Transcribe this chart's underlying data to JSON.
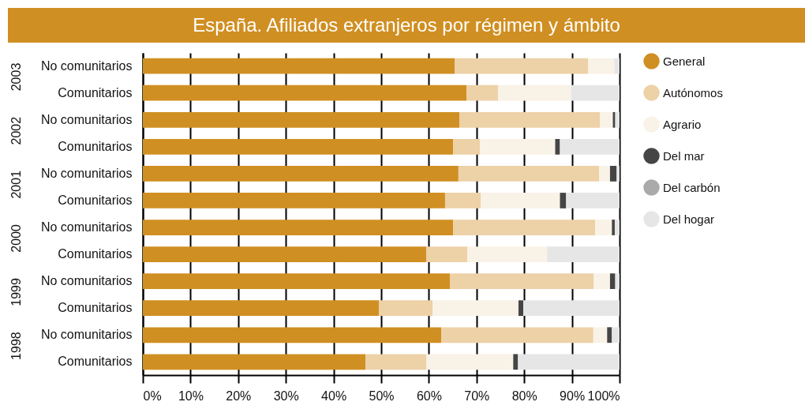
{
  "chart_data": {
    "type": "bar",
    "orientation": "horizontal",
    "stacked": true,
    "title": "España. Afiliados extranjeros por régimen y ámbito",
    "categories": [
      "No comunitarios",
      "Comunitarios",
      "No comunitarios",
      "Comunitarios",
      "No comunitarios",
      "Comunitarios",
      "No comunitarios",
      "Comunitarios",
      "No comunitarios",
      "Comunitarios",
      "No comunitarios",
      "Comunitarios"
    ],
    "annotations": [
      "2003",
      "2002",
      "2001",
      "2000",
      "1999",
      "1998"
    ],
    "series": [
      {
        "name": "General",
        "color": "#d08f22",
        "values": [
          65.4,
          67.9,
          66.4,
          65.1,
          66.2,
          63.4,
          65.1,
          59.5,
          64.4,
          49.5,
          62.6,
          46.7
        ]
      },
      {
        "name": "Autónomos",
        "color": "#edd1a7",
        "values": [
          28.0,
          6.6,
          29.5,
          5.6,
          29.5,
          7.5,
          29.8,
          8.6,
          30.2,
          11.3,
          31.9,
          12.8
        ]
      },
      {
        "name": "Agrario",
        "color": "#f9f2e6",
        "values": [
          5.5,
          15.3,
          2.7,
          15.8,
          2.3,
          16.6,
          3.5,
          16.7,
          3.4,
          18.0,
          2.9,
          18.2
        ]
      },
      {
        "name": "Del mar",
        "color": "#454545",
        "values": [
          0,
          0,
          0.5,
          1.0,
          1.4,
          1.3,
          0.6,
          0,
          1.1,
          1.0,
          1.0,
          1.0
        ]
      },
      {
        "name": "Del carbón",
        "color": "#aaaaaa",
        "values": [
          0,
          0,
          0,
          0,
          0,
          0,
          0,
          0,
          0,
          0,
          0,
          0
        ]
      },
      {
        "name": "Del hogar",
        "color": "#e6e6e6",
        "values": [
          1.1,
          10.2,
          0.9,
          12.5,
          0.6,
          11.2,
          1.0,
          15.2,
          0.9,
          20.2,
          1.6,
          21.3
        ]
      }
    ],
    "xlim": [
      0,
      100
    ],
    "xticks": [
      {
        "value": 0,
        "label": "0%"
      },
      {
        "value": 10,
        "label": "10%"
      },
      {
        "value": 20,
        "label": "20%"
      },
      {
        "value": 30,
        "label": "30%"
      },
      {
        "value": 40,
        "label": "40%"
      },
      {
        "value": 50,
        "label": "50%"
      },
      {
        "value": 60,
        "label": "60%"
      },
      {
        "value": 70,
        "label": "70%"
      },
      {
        "value": 80,
        "label": "80%"
      },
      {
        "value": 90,
        "label": "90%"
      },
      {
        "value": 100,
        "label": "100%"
      }
    ],
    "grid": "x",
    "legend": "right"
  }
}
